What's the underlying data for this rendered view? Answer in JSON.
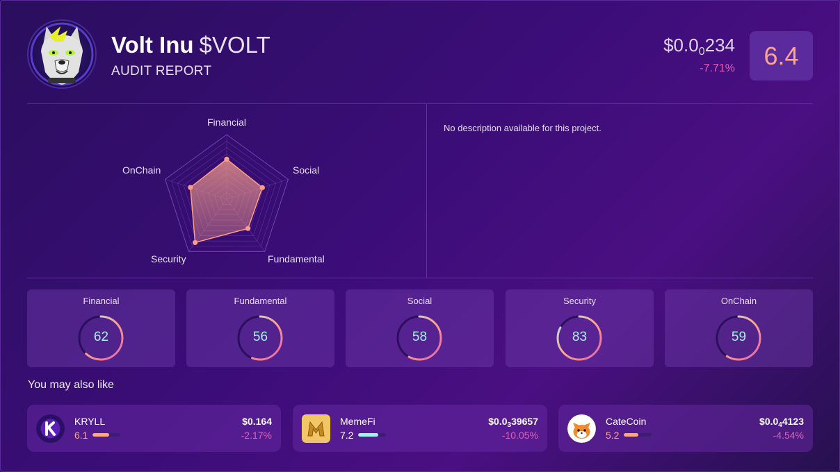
{
  "header": {
    "name": "Volt Inu",
    "ticker": "$VOLT",
    "subtitle": "AUDIT REPORT",
    "price_prefix": "$0.0",
    "price_zeros": "0",
    "price_digits": "234",
    "change": "-7.71%",
    "score": "6.4",
    "avatar_icon": "wolf-avatar-icon"
  },
  "radar": {
    "axes": [
      "Financial",
      "Social",
      "Fundamental",
      "Security",
      "OnChain"
    ],
    "values": [
      62,
      58,
      56,
      83,
      59
    ],
    "max": 100,
    "fill_color": "#f39a8a",
    "point_color": "#ff9d85"
  },
  "description": "No description available for this project.",
  "metrics": [
    {
      "label": "Financial",
      "value": "62",
      "pct": 62
    },
    {
      "label": "Fundamental",
      "value": "56",
      "pct": 56
    },
    {
      "label": "Social",
      "value": "58",
      "pct": 58
    },
    {
      "label": "Security",
      "value": "83",
      "pct": 83
    },
    {
      "label": "OnChain",
      "value": "59",
      "pct": 59
    }
  ],
  "also_like": {
    "heading": "You may also like",
    "items": [
      {
        "name": "KRYLL",
        "score": "6.1",
        "score_frac": 0.61,
        "bar_color": "#ffa58a",
        "price_prefix": "$0.164",
        "price_zeros": "",
        "price_digits": "",
        "change": "-2.17%",
        "icon": "kryll-logo-icon"
      },
      {
        "name": "MemeFi",
        "score": "7.2",
        "score_frac": 0.72,
        "bar_color": "#a7f0ec",
        "price_prefix": "$0.0",
        "price_zeros": "3",
        "price_digits": "39657",
        "change": "-10.05%",
        "icon": "memefi-logo-icon"
      },
      {
        "name": "CateCoin",
        "score": "5.2",
        "score_frac": 0.52,
        "bar_color": "#ffa58a",
        "price_prefix": "$0.0",
        "price_zeros": "4",
        "price_digits": "4123",
        "change": "-4.54%",
        "icon": "catecoin-logo-icon"
      }
    ]
  },
  "colors": {
    "accent_pink": "#e45fb4",
    "accent_peach": "#ffa58a",
    "accent_cyan": "#a7f0ec",
    "score_box_bg": "#5b2a9c"
  }
}
